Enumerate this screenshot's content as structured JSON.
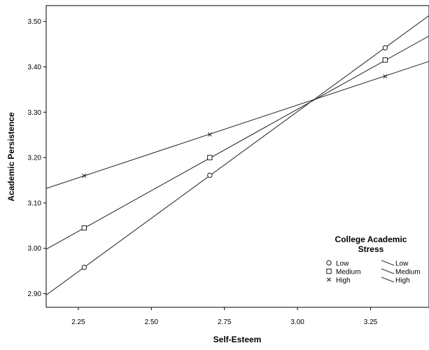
{
  "chart_data": {
    "type": "line",
    "xlabel": "Self-Esteem",
    "ylabel": "Academic Persistence",
    "xlim": [
      2.14,
      3.45
    ],
    "ylim": [
      2.87,
      3.535
    ],
    "xticks": [
      2.25,
      2.5,
      2.75,
      3.0,
      3.25
    ],
    "xtick_labels": [
      "2.25",
      "2.50",
      "2.75",
      "3.00",
      "3.25"
    ],
    "yticks": [
      2.9,
      3.0,
      3.1,
      3.2,
      3.3,
      3.4,
      3.5
    ],
    "ytick_labels": [
      "2.90",
      "3.00",
      "3.10",
      "3.20",
      "3.30",
      "3.40",
      "3.50"
    ],
    "grid": false,
    "legend_position": "bottom-right",
    "legend": {
      "title_line1": "College Academic",
      "title_line2": "Stress",
      "markers_header": "",
      "lines_header": ""
    },
    "series": [
      {
        "name": "Low",
        "marker": "circle",
        "points_x": [
          2.27,
          2.7,
          3.3
        ],
        "points_y": [
          2.958,
          3.161,
          3.442
        ],
        "line_x": [
          2.14,
          3.45
        ],
        "line_y": [
          2.897,
          3.513
        ]
      },
      {
        "name": "Medium",
        "marker": "square",
        "points_x": [
          2.27,
          2.7,
          3.3
        ],
        "points_y": [
          3.045,
          3.2,
          3.415
        ],
        "line_x": [
          2.14,
          3.45
        ],
        "line_y": [
          2.998,
          3.468
        ]
      },
      {
        "name": "High",
        "marker": "x",
        "points_x": [
          2.27,
          2.7,
          3.3
        ],
        "points_y": [
          3.16,
          3.251,
          3.379
        ],
        "line_x": [
          2.14,
          3.45
        ],
        "line_y": [
          3.132,
          3.412
        ]
      }
    ],
    "colors": {
      "line": "#333333",
      "marker": "#1a1a1a",
      "frame": "#000000"
    }
  }
}
